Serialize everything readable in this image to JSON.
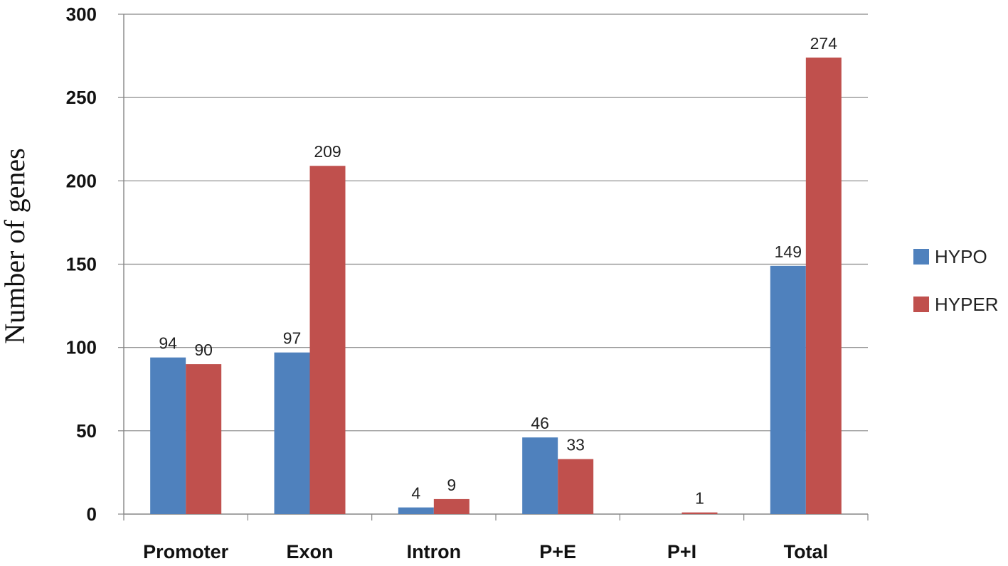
{
  "chart_data": {
    "type": "bar",
    "title": "",
    "xlabel": "",
    "ylabel": "Number of genes",
    "categories": [
      "Promoter",
      "Exon",
      "Intron",
      "P+E",
      "P+I",
      "Total"
    ],
    "series": [
      {
        "name": "HYPO",
        "color": "#4F81BD",
        "values": [
          94,
          97,
          4,
          46,
          0,
          149
        ],
        "labels": [
          "94",
          "97",
          "4",
          "46",
          "",
          "149"
        ]
      },
      {
        "name": "HYPER",
        "color": "#C0504D",
        "values": [
          90,
          209,
          9,
          33,
          1,
          274
        ],
        "labels": [
          "90",
          "209",
          "9",
          "33",
          "1",
          "274"
        ]
      }
    ],
    "ylim": [
      0,
      300
    ],
    "yticks": [
      "0",
      "50",
      "100",
      "150",
      "200",
      "250",
      "300"
    ],
    "grid": true,
    "legend": "right"
  }
}
